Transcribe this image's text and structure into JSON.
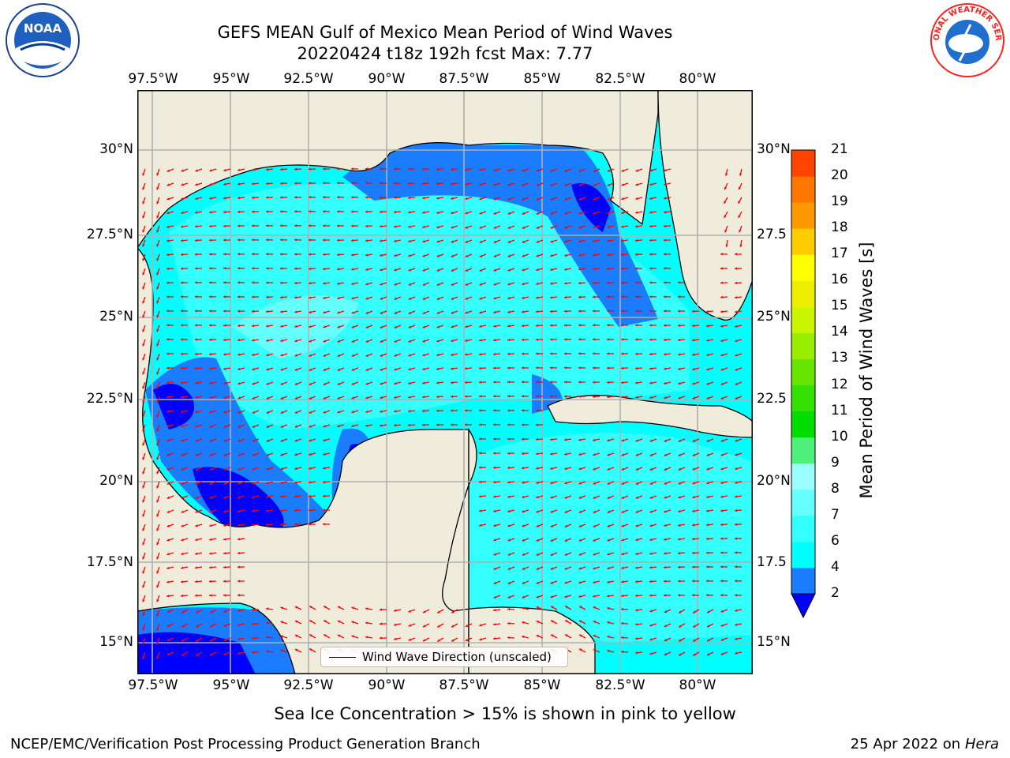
{
  "title": {
    "line1": "GEFS MEAN Gulf of Mexico Mean Period of Wind Waves",
    "line2": "20220424 t18z 192h fcst   Max: 7.77"
  },
  "logos": {
    "left": "noa-logo-icon",
    "left_text": "NOAA",
    "right": "nws-logo-icon",
    "right_text": "NATIONAL WEATHER SERVICE"
  },
  "map": {
    "lon_ticks": [
      "97.5°W",
      "95°W",
      "92.5°W",
      "90°W",
      "87.5°W",
      "85°W",
      "82.5°W",
      "80°W"
    ],
    "lat_ticks_left": [
      "30°N",
      "27.5°N",
      "25°N",
      "22.5°N",
      "20°N",
      "17.5°N",
      "15°N"
    ],
    "lat_ticks_right": [
      "30°N",
      "27.5",
      "25°N",
      "22.5",
      "20°N",
      "17.5",
      "15°N"
    ],
    "land_color": "#efecdc",
    "grid_color": "#b0b0b0",
    "arrow_color": "#ff0000"
  },
  "legend": {
    "label": "Wind Wave Direction (unscaled)"
  },
  "colorbar": {
    "title": "Mean Period of Wind Waves [s]",
    "levels": [
      "2",
      "4",
      "6",
      "7",
      "8",
      "9",
      "10",
      "11",
      "12",
      "13",
      "14",
      "15",
      "16",
      "17",
      "18",
      "19",
      "20",
      "21"
    ],
    "colors": [
      "#1a7dff",
      "#00ffff",
      "#33ffff",
      "#66ffff",
      "#99ffff",
      "#4cf07a",
      "#00dd00",
      "#33e000",
      "#66e600",
      "#99ee00",
      "#ccf500",
      "#eeee00",
      "#ffff00",
      "#ffcc00",
      "#ff9900",
      "#ff7700",
      "#ff4400",
      "#ff0000"
    ],
    "under_color": "#0000ff"
  },
  "notes": {
    "sea_ice": "Sea Ice Concentration > 15% is shown in pink to yellow",
    "footer_left": "NCEP/EMC/Verification Post Processing Product Generation Branch",
    "footer_right_date": "25 Apr 2022 on ",
    "footer_right_machine": "Hera"
  }
}
